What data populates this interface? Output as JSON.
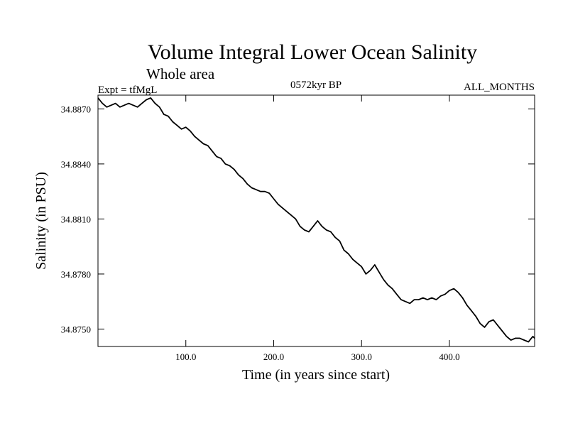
{
  "chart_data": {
    "type": "line",
    "title": "Volume Integral Lower Ocean Salinity",
    "subtitle": "Whole area",
    "header_left": "Expt = tfMgL",
    "header_center": "0572kyr BP",
    "header_right": "ALL_MONTHS",
    "xlabel": "Time (in years since start)",
    "ylabel": "Salinity (in PSU)",
    "xlim": [
      0,
      497
    ],
    "ylim": [
      34.87405,
      34.88775
    ],
    "x_ticks": [
      100,
      200,
      300,
      400
    ],
    "x_tick_labels": [
      "100.0",
      "200.0",
      "300.0",
      "400.0"
    ],
    "y_ticks": [
      34.875,
      34.878,
      34.881,
      34.884,
      34.887
    ],
    "y_tick_labels": [
      "34.8750",
      "34.8780",
      "34.8810",
      "34.8840",
      "34.8870"
    ],
    "grid": false,
    "series": [
      {
        "color": "#000000",
        "x": [
          0,
          5,
          10,
          15,
          20,
          25,
          30,
          35,
          40,
          45,
          50,
          55,
          60,
          65,
          70,
          75,
          80,
          85,
          90,
          95,
          100,
          105,
          110,
          115,
          120,
          125,
          130,
          135,
          140,
          145,
          150,
          155,
          160,
          165,
          170,
          175,
          180,
          185,
          190,
          195,
          200,
          205,
          210,
          215,
          220,
          225,
          230,
          235,
          240,
          245,
          250,
          255,
          260,
          265,
          270,
          275,
          280,
          285,
          290,
          295,
          300,
          305,
          310,
          315,
          320,
          325,
          330,
          335,
          340,
          345,
          350,
          355,
          360,
          365,
          370,
          375,
          380,
          385,
          390,
          395,
          400,
          405,
          410,
          415,
          420,
          425,
          430,
          435,
          440,
          445,
          450,
          455,
          460,
          465,
          470,
          475,
          480,
          485,
          490,
          495,
          497
        ],
        "y": [
          34.8876,
          34.8873,
          34.8871,
          34.8872,
          34.8873,
          34.8871,
          34.8872,
          34.8873,
          34.8872,
          34.8871,
          34.8873,
          34.8875,
          34.8876,
          34.8873,
          34.8871,
          34.8867,
          34.8866,
          34.8863,
          34.8861,
          34.8859,
          34.886,
          34.8858,
          34.8855,
          34.8853,
          34.8851,
          34.885,
          34.8847,
          34.8844,
          34.8843,
          34.884,
          34.8839,
          34.8837,
          34.8834,
          34.8832,
          34.8829,
          34.8827,
          34.8826,
          34.8825,
          34.8825,
          34.8824,
          34.8821,
          34.8818,
          34.8816,
          34.8814,
          34.8812,
          34.881,
          34.8806,
          34.8804,
          34.8803,
          34.8806,
          34.8809,
          34.8806,
          34.8804,
          34.8803,
          34.88,
          34.8798,
          34.8793,
          34.8791,
          34.8788,
          34.8786,
          34.8784,
          34.878,
          34.8782,
          34.8785,
          34.8781,
          34.8777,
          34.8774,
          34.8772,
          34.8769,
          34.8766,
          34.8765,
          34.8764,
          34.8766,
          34.8766,
          34.8767,
          34.8766,
          34.8767,
          34.8766,
          34.8768,
          34.8769,
          34.8771,
          34.8772,
          34.877,
          34.8767,
          34.8763,
          34.876,
          34.8757,
          34.8753,
          34.8751,
          34.8754,
          34.8755,
          34.8752,
          34.8749,
          34.8746,
          34.8744,
          34.8745,
          34.8745,
          34.8744,
          34.8743,
          34.8746,
          34.8745
        ]
      }
    ]
  }
}
